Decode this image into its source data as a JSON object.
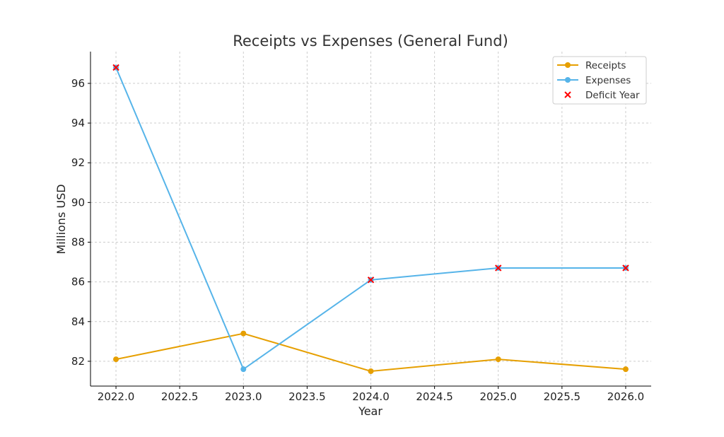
{
  "chart_data": {
    "type": "line",
    "title": "Receipts vs Expenses (General Fund)",
    "xlabel": "Year",
    "ylabel": "Millions USD",
    "x": [
      2022,
      2023,
      2024,
      2025,
      2026
    ],
    "series": [
      {
        "name": "Receipts",
        "values": [
          82.1,
          83.4,
          81.5,
          82.1,
          81.6
        ],
        "color": "#E69F00",
        "marker": "circle"
      },
      {
        "name": "Expenses",
        "values": [
          96.8,
          81.6,
          86.1,
          86.7,
          86.7
        ],
        "color": "#56B4E9",
        "marker": "circle"
      }
    ],
    "deficit": {
      "name": "Deficit Year",
      "x": [
        2022,
        2024,
        2025,
        2026
      ],
      "y": [
        96.8,
        86.1,
        86.7,
        86.7
      ],
      "color": "#FF0000",
      "marker": "x"
    },
    "xlim": [
      2021.8,
      2026.2
    ],
    "ylim": [
      80.75,
      97.6
    ],
    "xticks": [
      2022.0,
      2022.5,
      2023.0,
      2023.5,
      2024.0,
      2024.5,
      2025.0,
      2025.5,
      2026.0
    ],
    "xtick_labels": [
      "2022.0",
      "2022.5",
      "2023.0",
      "2023.5",
      "2024.0",
      "2024.5",
      "2025.0",
      "2025.5",
      "2026.0"
    ],
    "yticks": [
      82,
      84,
      86,
      88,
      90,
      92,
      94,
      96
    ],
    "ytick_labels": [
      "82",
      "84",
      "86",
      "88",
      "90",
      "92",
      "94",
      "96"
    ],
    "grid": true,
    "legend_position": "top-right"
  }
}
